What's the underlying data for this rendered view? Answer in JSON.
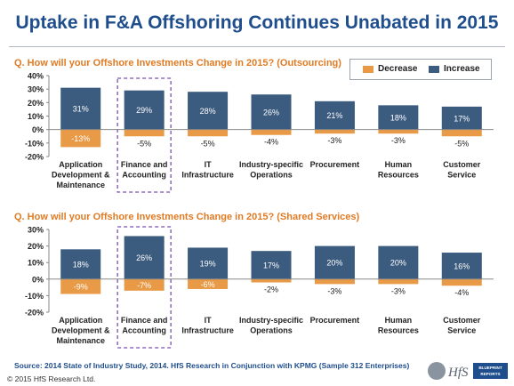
{
  "header": {
    "title": "Uptake in F&A Offshoring Continues Unabated in 2015"
  },
  "legend": {
    "decrease_label": "Decrease",
    "increase_label": "Increase"
  },
  "colors": {
    "increase": "#3b5b7f",
    "decrease": "#e89a46",
    "highlight": "#7b4fb0",
    "title": "#1f4e8c",
    "question": "#e07b24"
  },
  "footer": {
    "source": "Source: 2014 State  of Industry Study, 2014.  HfS Research in Conjunction with KPMG (Sample 312 Enterprises)",
    "copyright": "© 2015 HfS Research Ltd.",
    "logo_text": "HfS",
    "logo_badge": "BLUEPRINT REPORTS"
  },
  "chart_data": [
    {
      "type": "bar",
      "title": "Q. How will your Offshore Investments Change in 2015? (Outsourcing)",
      "categories": [
        [
          "Application",
          "Development &",
          "Maintenance"
        ],
        [
          "Finance and",
          "Accounting"
        ],
        [
          "IT",
          "Infrastructure"
        ],
        [
          "Industry-specific",
          "Operations"
        ],
        [
          "Procurement"
        ],
        [
          "Human",
          "Resources"
        ],
        [
          "Customer",
          "Service"
        ]
      ],
      "series": [
        {
          "name": "Increase",
          "values": [
            31,
            29,
            28,
            26,
            21,
            18,
            17
          ],
          "labels": [
            "31%",
            "29%",
            "28%",
            "26%",
            "21%",
            "18%",
            "17%"
          ]
        },
        {
          "name": "Decrease",
          "values": [
            -13,
            -5,
            -5,
            -4,
            -3,
            -3,
            -5
          ],
          "labels": [
            "-13%",
            "-5%",
            "-5%",
            "-4%",
            "-3%",
            "-3%",
            "-5%"
          ]
        }
      ],
      "ylim": [
        -20,
        40
      ],
      "yticks": [
        "-20%",
        "-10%",
        "0%",
        "10%",
        "20%",
        "30%",
        "40%"
      ],
      "highlight_index": 1,
      "legend": "top-right",
      "grid": false
    },
    {
      "type": "bar",
      "title": "Q. How will your Offshore Investments Change in 2015? (Shared Services)",
      "categories": [
        [
          "Application",
          "Development &",
          "Maintenance"
        ],
        [
          "Finance and",
          "Accounting"
        ],
        [
          "IT",
          "Infrastructure"
        ],
        [
          "Industry-specific",
          "Operations"
        ],
        [
          "Procurement"
        ],
        [
          "Human",
          "Resources"
        ],
        [
          "Customer",
          "Service"
        ]
      ],
      "series": [
        {
          "name": "Increase",
          "values": [
            18,
            26,
            19,
            17,
            20,
            20,
            16
          ],
          "labels": [
            "18%",
            "26%",
            "19%",
            "17%",
            "20%",
            "20%",
            "16%"
          ]
        },
        {
          "name": "Decrease",
          "values": [
            -9,
            -7,
            -6,
            -2,
            -3,
            -3,
            -4
          ],
          "labels": [
            "-9%",
            "-7%",
            "-6%",
            "-2%",
            "-3%",
            "-3%",
            "-4%"
          ]
        }
      ],
      "ylim": [
        -20,
        30
      ],
      "yticks": [
        "-20%",
        "-10%",
        "0%",
        "10%",
        "20%",
        "30%"
      ],
      "highlight_index": 1,
      "grid": false
    }
  ]
}
